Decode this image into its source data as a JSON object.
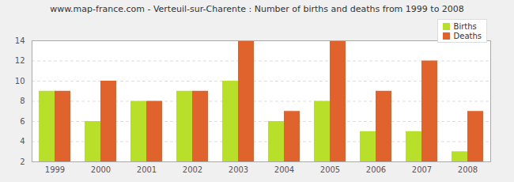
{
  "chart_data": {
    "type": "bar",
    "title": "www.map-france.com - Verteuil-sur-Charente : Number of births and deaths from 1999 to 2008",
    "categories": [
      "1999",
      "2000",
      "2001",
      "2002",
      "2003",
      "2004",
      "2005",
      "2006",
      "2007",
      "2008"
    ],
    "series": [
      {
        "name": "Births",
        "color": "#b8e02a",
        "values": [
          9,
          6,
          8,
          9,
          10,
          6,
          8,
          5,
          5,
          3
        ]
      },
      {
        "name": "Deaths",
        "color": "#e0622d",
        "values": [
          9,
          10,
          8,
          9,
          14,
          7,
          14,
          9,
          12,
          7
        ]
      }
    ],
    "ylim": [
      2,
      14
    ],
    "yticks": [
      2,
      4,
      6,
      8,
      10,
      12,
      14
    ],
    "grid": true,
    "legend": "top right"
  }
}
